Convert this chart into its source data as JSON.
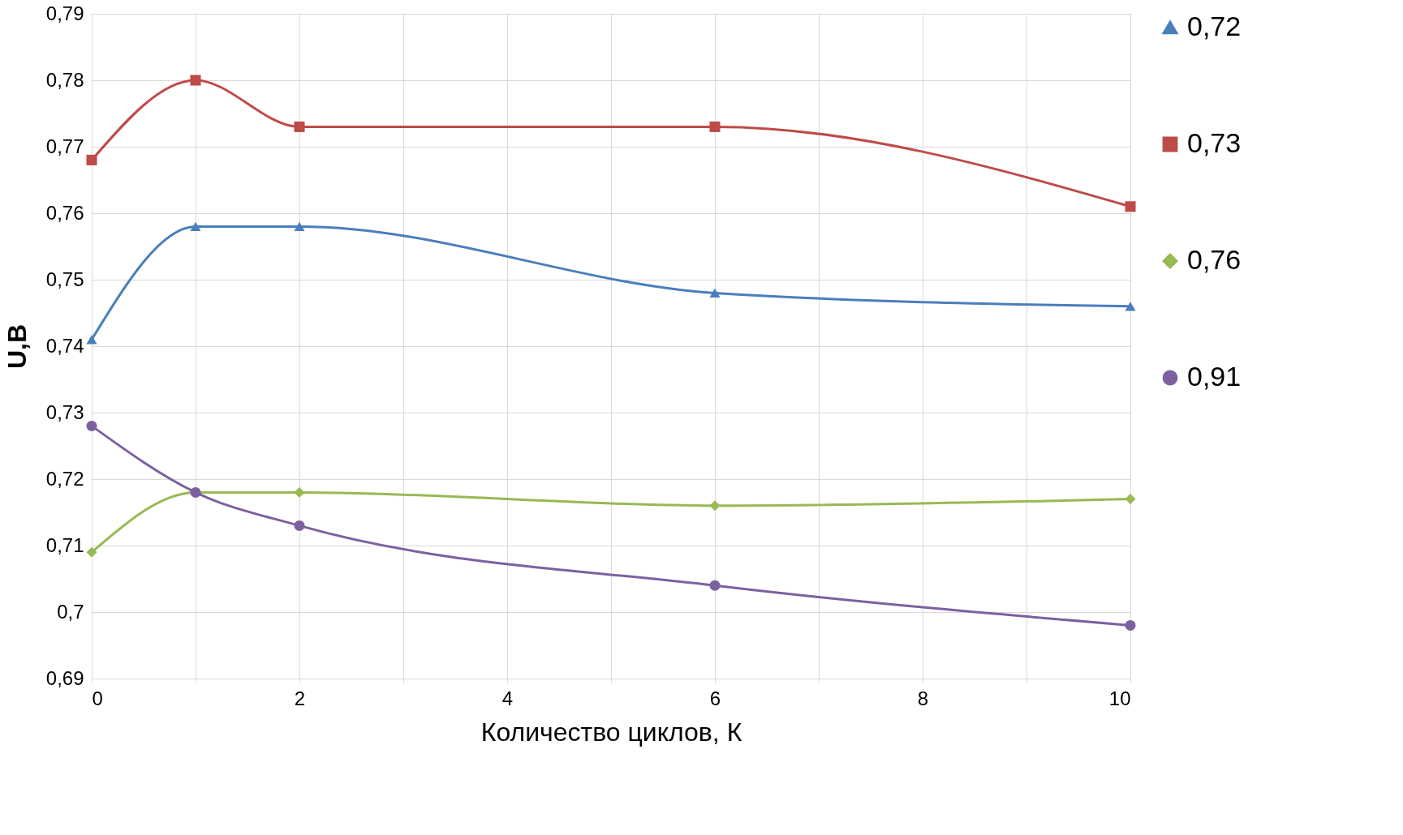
{
  "chart_data": {
    "type": "line",
    "xlabel": "Количество циклов, К",
    "ylabel": "U,В",
    "x": [
      0,
      1,
      2,
      6,
      10
    ],
    "series": [
      {
        "name": "0,72",
        "color": "#4a7ebb",
        "marker": "triangle",
        "values": [
          0.741,
          0.758,
          0.758,
          0.748,
          0.746
        ]
      },
      {
        "name": "0,73",
        "color": "#be4b48",
        "marker": "square",
        "values": [
          0.768,
          0.78,
          0.773,
          0.773,
          0.761
        ]
      },
      {
        "name": "0,76",
        "color": "#98b954",
        "marker": "diamond",
        "values": [
          0.709,
          0.718,
          0.718,
          0.716,
          0.717
        ]
      },
      {
        "name": "0,91",
        "color": "#7d60a0",
        "marker": "circle",
        "values": [
          0.728,
          0.718,
          0.713,
          0.704,
          0.698
        ]
      }
    ],
    "xlim": [
      0,
      10
    ],
    "xticks": [
      0,
      {
        "value": 1,
        "label": null
      },
      2,
      {
        "value": 3,
        "label": null
      },
      4,
      {
        "value": 5,
        "label": null
      },
      6,
      {
        "value": 7,
        "label": null
      },
      8,
      {
        "value": 9,
        "label": null
      },
      10
    ],
    "ylim": [
      0.69,
      0.79
    ],
    "yticks": [
      {
        "value": 0.69,
        "label": "0,69"
      },
      {
        "value": 0.7,
        "label": "0,7"
      },
      {
        "value": 0.71,
        "label": "0,71"
      },
      {
        "value": 0.72,
        "label": "0,72"
      },
      {
        "value": 0.73,
        "label": "0,73"
      },
      {
        "value": 0.74,
        "label": "0,74"
      },
      {
        "value": 0.75,
        "label": "0,75"
      },
      {
        "value": 0.76,
        "label": "0,76"
      },
      {
        "value": 0.77,
        "label": "0,77"
      },
      {
        "value": 0.78,
        "label": "0,78"
      },
      {
        "value": 0.79,
        "label": "0,79"
      }
    ],
    "grid": true,
    "legend": "right",
    "line_style": "solid"
  }
}
